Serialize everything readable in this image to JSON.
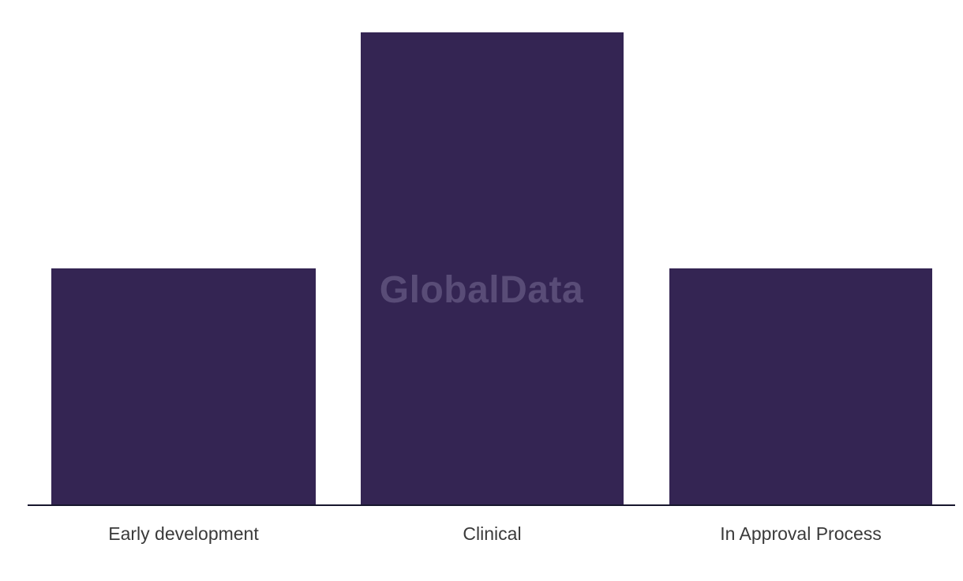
{
  "chart_data": {
    "type": "bar",
    "title": "",
    "xlabel": "",
    "ylabel": "",
    "categories": [
      "Early development",
      "Clinical",
      "In Approval Process"
    ],
    "values": [
      1,
      2,
      1
    ],
    "ylim": [
      0,
      2
    ],
    "grid": false,
    "legend": false,
    "bar_color": "#342553",
    "axis_line_color": "#17162D",
    "label_color": "#3A3A3A"
  },
  "watermark": {
    "text": "GlobalData",
    "color": "#594C77"
  }
}
